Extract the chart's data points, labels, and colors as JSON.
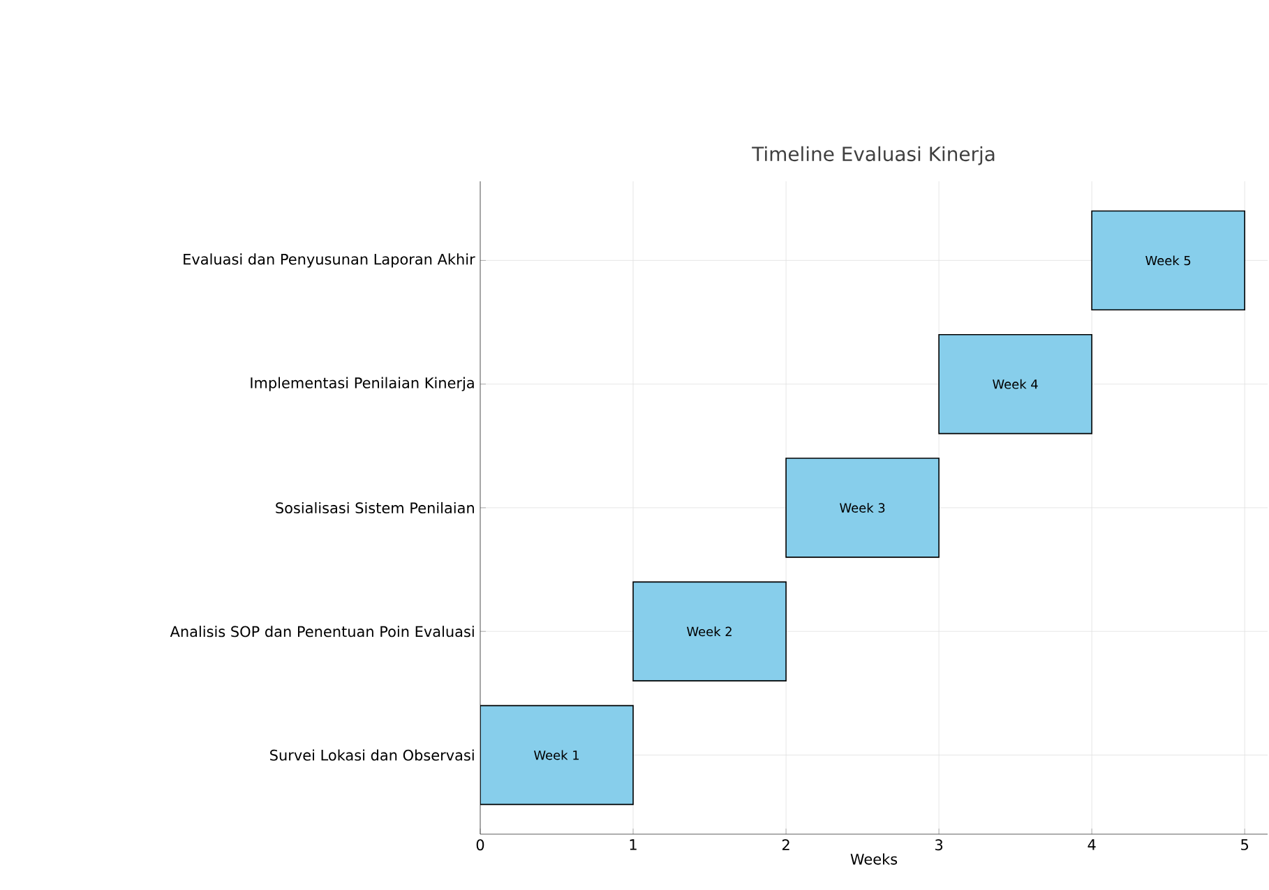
{
  "chart_data": {
    "type": "bar",
    "orientation": "horizontal",
    "title": "Timeline Evaluasi Kinerja",
    "xlabel": "Weeks",
    "categories": [
      "Evaluasi dan Penyusunan Laporan Akhir",
      "Implementasi Penilaian Kinerja",
      "Sosialisasi Sistem Penilaian",
      "Analisis SOP dan Penentuan Poin Evaluasi",
      "Survei Lokasi dan Observasi"
    ],
    "base": [
      4,
      3,
      2,
      1,
      0
    ],
    "values": [
      1,
      1,
      1,
      1,
      1
    ],
    "value_labels": [
      "Week 5",
      "Week 4",
      "Week 3",
      "Week 2",
      "Week 1"
    ],
    "color": "#87ceeb",
    "xlim": [
      0,
      5.15
    ],
    "xticks": [
      0,
      1,
      2,
      3,
      4,
      5
    ],
    "grid": true
  }
}
